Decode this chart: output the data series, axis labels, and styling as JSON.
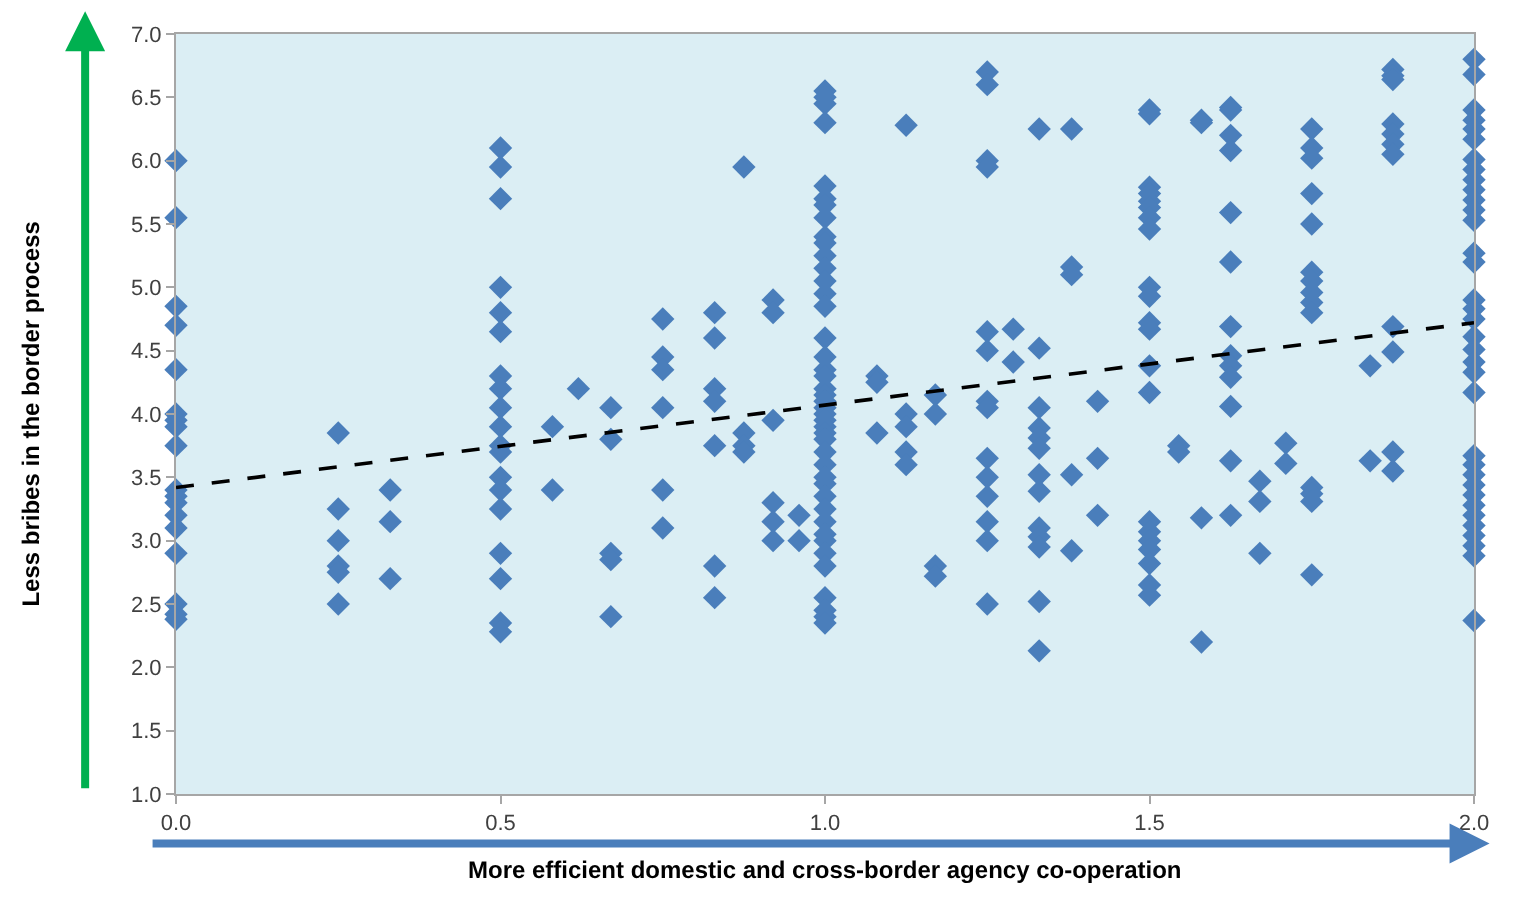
{
  "chart_data": {
    "type": "scatter",
    "xlabel": "More efficient domestic and cross-border agency co-operation",
    "ylabel": "Less bribes in the border process",
    "marker": "diamond",
    "grid": false,
    "xlim": [
      0,
      2
    ],
    "ylim": [
      1,
      7
    ],
    "xticks": [
      {
        "value": 0,
        "label": "0.0"
      },
      {
        "value": 0.5,
        "label": "0.5"
      },
      {
        "value": 1,
        "label": "1.0"
      },
      {
        "value": 1.5,
        "label": "1.5"
      },
      {
        "value": 2,
        "label": "2.0"
      }
    ],
    "yticks": [
      {
        "value": 1,
        "label": "1.0"
      },
      {
        "value": 1.5,
        "label": "1.5"
      },
      {
        "value": 2,
        "label": "2.0"
      },
      {
        "value": 2.5,
        "label": "2.5"
      },
      {
        "value": 3,
        "label": "3.0"
      },
      {
        "value": 3.5,
        "label": "3.5"
      },
      {
        "value": 4,
        "label": "4.0"
      },
      {
        "value": 4.5,
        "label": "4.5"
      },
      {
        "value": 5,
        "label": "5.0"
      },
      {
        "value": 5.5,
        "label": "5.5"
      },
      {
        "value": 6,
        "label": "6.0"
      },
      {
        "value": 6.5,
        "label": "6.5"
      },
      {
        "value": 7,
        "label": "7.0"
      }
    ],
    "series": [
      {
        "color": "#4a7ebb",
        "x": [
          0,
          0,
          0,
          0,
          0,
          0,
          0,
          0,
          0,
          0,
          0,
          0,
          0,
          0,
          0,
          0,
          0,
          0,
          0.25,
          0.25,
          0.25,
          0.25,
          0.25,
          0.25,
          0.33,
          0.33,
          0.33,
          0.5,
          0.5,
          0.5,
          0.5,
          0.5,
          0.5,
          0.5,
          0.5,
          0.5,
          0.5,
          0.5,
          0.5,
          0.5,
          0.5,
          0.5,
          0.5,
          0.5,
          0.5,
          0.5,
          0.58,
          0.58,
          0.62,
          0.67,
          0.67,
          0.67,
          0.67,
          0.67,
          0.75,
          0.75,
          0.75,
          0.75,
          0.75,
          0.75,
          0.83,
          0.83,
          0.83,
          0.83,
          0.83,
          0.83,
          0.83,
          0.875,
          0.875,
          0.875,
          0.875,
          0.92,
          0.92,
          0.92,
          0.92,
          0.92,
          0.92,
          0.96,
          0.96,
          1,
          1,
          1,
          1,
          1,
          1,
          1,
          1,
          1,
          1,
          1,
          1,
          1,
          1,
          1,
          1,
          1,
          1,
          1,
          1,
          1,
          1,
          1,
          1,
          1,
          1,
          1,
          1,
          1,
          1,
          1,
          1,
          1,
          1,
          1,
          1,
          1,
          1,
          1,
          1,
          1,
          1,
          1,
          1.08,
          1.08,
          1.08,
          1.125,
          1.125,
          1.125,
          1.125,
          1.125,
          1.17,
          1.17,
          1.17,
          1.17,
          1.25,
          1.25,
          1.25,
          1.25,
          1.25,
          1.25,
          1.25,
          1.25,
          1.25,
          1.25,
          1.25,
          1.25,
          1.25,
          1.25,
          1.29,
          1.29,
          1.33,
          1.33,
          1.33,
          1.33,
          1.33,
          1.33,
          1.33,
          1.33,
          1.33,
          1.33,
          1.33,
          1.33,
          1.33,
          1.38,
          1.38,
          1.38,
          1.38,
          1.38,
          1.42,
          1.42,
          1.42,
          1.5,
          1.5,
          1.5,
          1.5,
          1.5,
          1.5,
          1.5,
          1.5,
          1.5,
          1.5,
          1.5,
          1.5,
          1.5,
          1.5,
          1.5,
          1.5,
          1.5,
          1.5,
          1.5,
          1.5,
          1.5,
          1.545,
          1.545,
          1.58,
          1.58,
          1.58,
          1.58,
          1.625,
          1.625,
          1.625,
          1.625,
          1.625,
          1.625,
          1.625,
          1.625,
          1.625,
          1.625,
          1.625,
          1.625,
          1.625,
          1.67,
          1.67,
          1.67,
          1.71,
          1.71,
          1.75,
          1.75,
          1.75,
          1.75,
          1.75,
          1.75,
          1.75,
          1.75,
          1.75,
          1.75,
          1.75,
          1.75,
          1.75,
          1.75,
          1.84,
          1.84,
          1.875,
          1.875,
          1.875,
          1.875,
          1.875,
          1.875,
          1.875,
          1.875,
          1.875,
          1.875,
          1.875,
          2,
          2,
          2,
          2,
          2,
          2,
          2,
          2,
          2,
          2,
          2,
          2,
          2,
          2,
          2,
          2,
          2,
          2,
          2,
          2,
          2,
          2,
          2,
          2,
          2,
          2,
          2,
          2,
          2,
          2,
          2,
          2,
          2,
          2,
          2
        ],
        "values": [
          6.0,
          5.55,
          4.85,
          4.7,
          4.35,
          4.0,
          3.95,
          3.9,
          3.75,
          3.4,
          3.35,
          3.3,
          3.2,
          3.1,
          2.9,
          2.5,
          2.42,
          2.38,
          3.85,
          3.25,
          3.0,
          2.8,
          2.75,
          2.5,
          3.4,
          3.15,
          2.7,
          6.1,
          5.95,
          5.7,
          5.0,
          4.8,
          4.65,
          4.3,
          4.2,
          4.05,
          3.9,
          3.75,
          3.7,
          3.5,
          3.4,
          3.25,
          2.9,
          2.7,
          2.35,
          2.28,
          3.9,
          3.4,
          4.2,
          4.05,
          3.8,
          2.9,
          2.85,
          2.4,
          4.75,
          4.45,
          4.35,
          4.05,
          3.4,
          3.1,
          4.8,
          4.6,
          4.2,
          4.1,
          3.75,
          2.8,
          2.55,
          5.95,
          3.85,
          3.75,
          3.7,
          4.9,
          4.8,
          3.95,
          3.3,
          3.15,
          3.0,
          3.2,
          3.0,
          6.55,
          6.5,
          6.45,
          6.3,
          5.8,
          5.7,
          5.65,
          5.55,
          5.4,
          5.35,
          5.25,
          5.15,
          5.05,
          4.95,
          4.85,
          4.6,
          4.45,
          4.35,
          4.3,
          4.2,
          4.15,
          4.1,
          4.05,
          4.0,
          3.95,
          3.9,
          3.85,
          3.8,
          3.7,
          3.6,
          3.5,
          3.45,
          3.35,
          3.25,
          3.15,
          3.05,
          3.0,
          2.9,
          2.8,
          2.55,
          2.45,
          2.4,
          2.35,
          4.3,
          4.25,
          3.85,
          6.28,
          4.0,
          3.9,
          3.7,
          3.6,
          4.15,
          4.0,
          2.8,
          2.72,
          6.7,
          6.6,
          6.0,
          5.95,
          4.65,
          4.5,
          4.1,
          4.05,
          3.65,
          3.5,
          3.35,
          3.15,
          3.0,
          2.5,
          4.67,
          4.41,
          6.25,
          4.52,
          4.05,
          3.89,
          3.81,
          3.73,
          3.52,
          3.39,
          3.1,
          3.03,
          2.95,
          2.52,
          2.13,
          6.25,
          5.16,
          5.1,
          3.52,
          2.92,
          4.1,
          3.65,
          3.2,
          6.4,
          6.37,
          5.79,
          5.74,
          5.68,
          5.63,
          5.55,
          5.46,
          5.0,
          4.93,
          4.72,
          4.67,
          4.38,
          4.17,
          3.15,
          3.07,
          3.0,
          2.93,
          2.82,
          2.65,
          2.57,
          3.75,
          3.7,
          6.32,
          6.3,
          3.18,
          2.2,
          6.42,
          6.4,
          6.2,
          6.08,
          5.59,
          5.2,
          4.69,
          4.46,
          4.38,
          4.29,
          4.06,
          3.63,
          3.2,
          3.47,
          3.31,
          2.9,
          3.77,
          3.61,
          6.25,
          6.1,
          6.02,
          5.74,
          5.5,
          5.12,
          5.05,
          4.96,
          4.88,
          4.8,
          3.42,
          3.37,
          3.31,
          2.73,
          4.38,
          3.63,
          6.72,
          6.67,
          6.64,
          6.29,
          6.21,
          6.13,
          6.05,
          4.69,
          4.49,
          3.7,
          3.55,
          6.8,
          6.68,
          6.4,
          6.32,
          6.25,
          6.17,
          6.01,
          5.93,
          5.85,
          5.77,
          5.69,
          5.61,
          5.53,
          5.27,
          5.2,
          4.9,
          4.83,
          4.75,
          4.61,
          4.51,
          4.41,
          4.33,
          4.17,
          3.67,
          3.6,
          3.52,
          3.44,
          3.36,
          3.28,
          3.2,
          3.12,
          3.04,
          2.96,
          2.88,
          2.37
        ]
      },
      {
        "type": "line",
        "color": "#000000",
        "marker": "none",
        "line_style": "dashed",
        "x": [
          0,
          2
        ],
        "values": [
          3.42,
          4.72
        ]
      }
    ]
  }
}
